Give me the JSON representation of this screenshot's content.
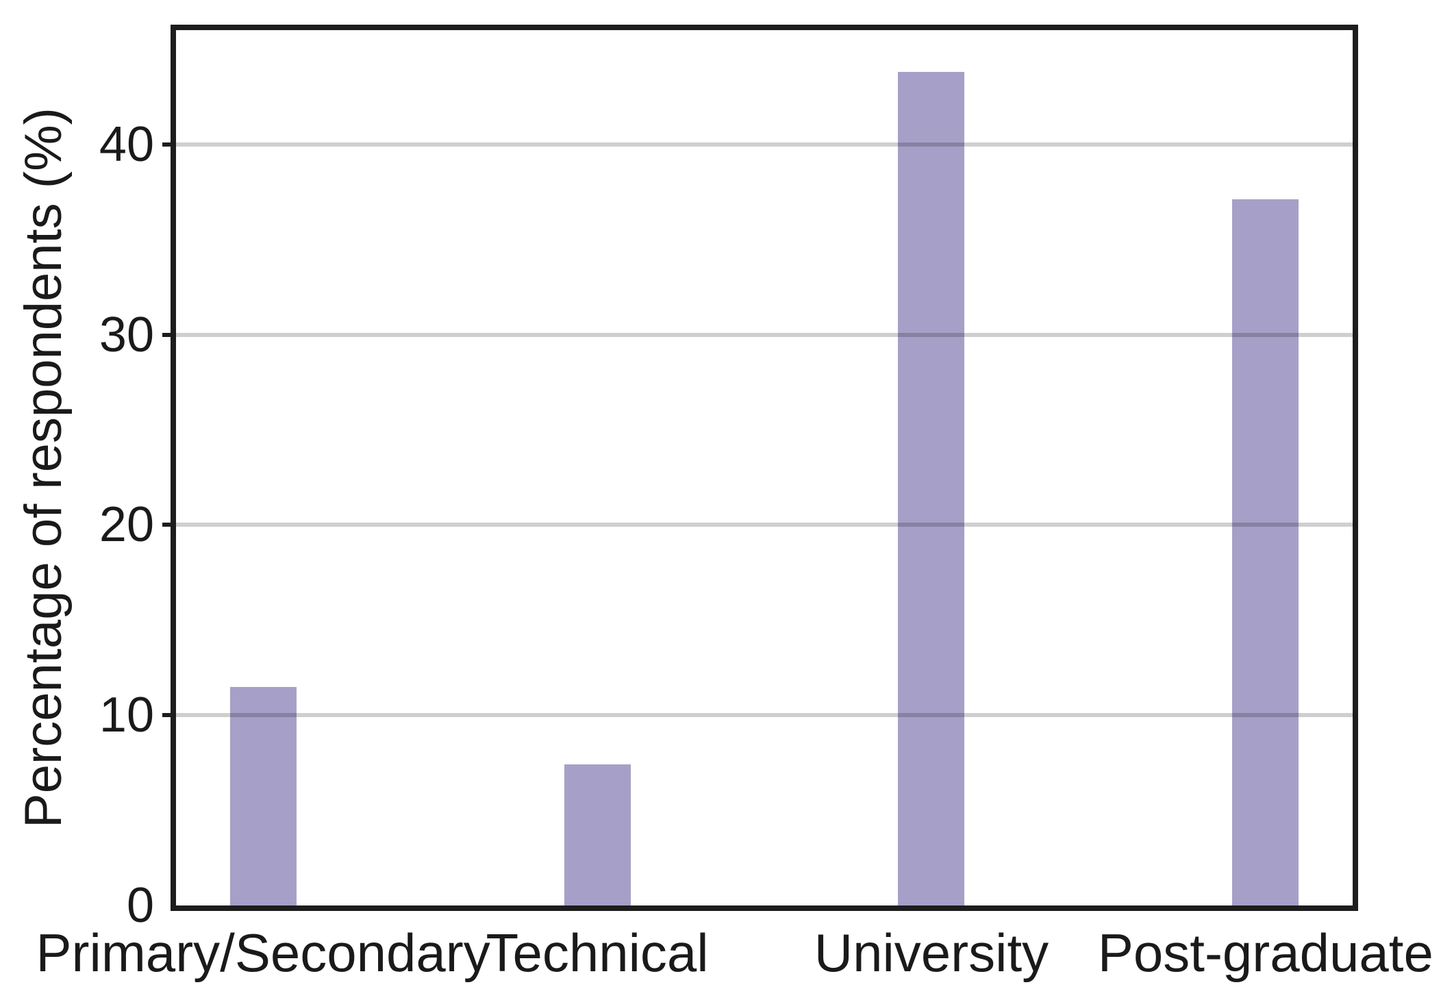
{
  "chart_data": {
    "type": "bar",
    "categories": [
      "Primary/Secondary",
      "Technical",
      "University",
      "Post-graduate"
    ],
    "values": [
      11.5,
      7.4,
      43.8,
      37.1
    ],
    "title": "",
    "xlabel": "",
    "ylabel": "Percentage of respondents (%)",
    "ylim": [
      0,
      46
    ],
    "yticks": [
      0,
      10,
      20,
      30,
      40
    ],
    "grid": "horizontal",
    "legend": "none",
    "bar_color": "#a6a0c8",
    "grid_color": "#c9c9c9",
    "axis_color": "#1d1d1d",
    "text_color": "#1a1a1a",
    "background_color": "#ffffff"
  }
}
